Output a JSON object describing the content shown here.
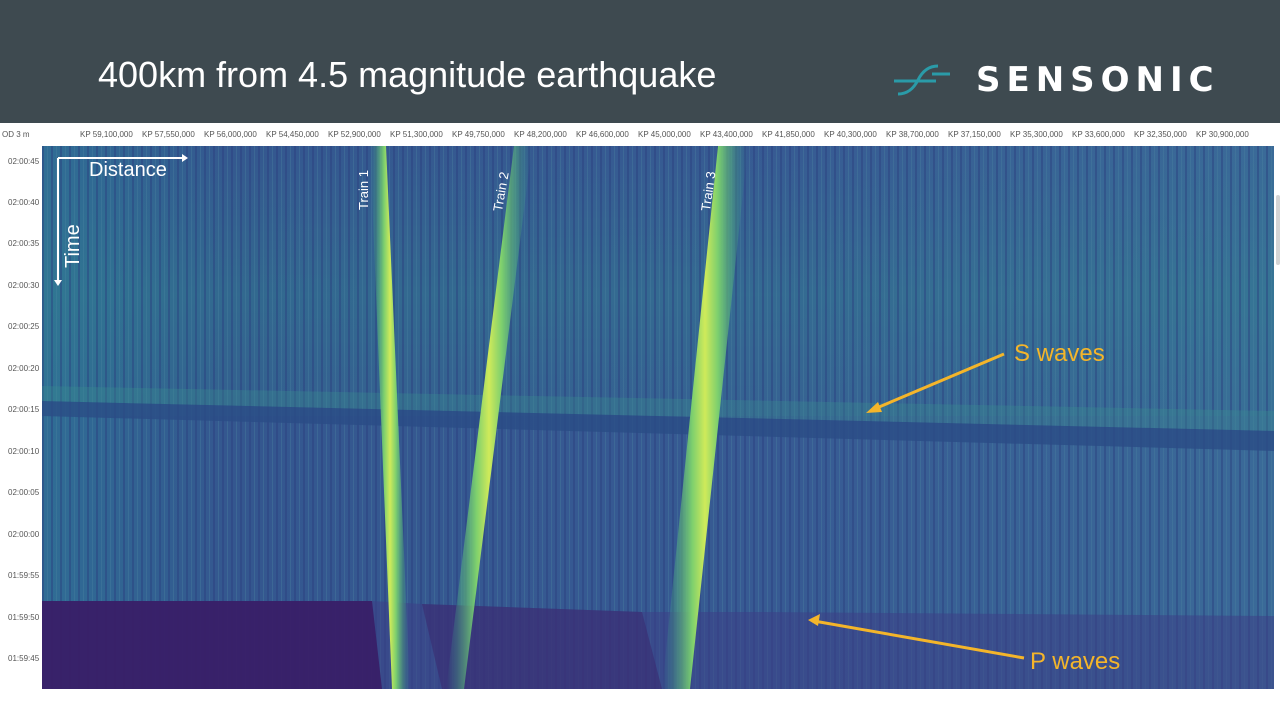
{
  "slide": {
    "title": "400km from 4.5 magnitude earthquake",
    "logo_text": "SENSONIC",
    "header_color": "#3e4a50",
    "logo_accent": "#2a9ba8"
  },
  "waterfall": {
    "x_ticks": [
      "OD 3 m",
      "KP 59,100,000",
      "KP 57,550,000",
      "KP 56,000,000",
      "KP 54,450,000",
      "KP 52,900,000",
      "KP 51,300,000",
      "KP 49,750,000",
      "KP 48,200,000",
      "KP 46,600,000",
      "KP 45,000,000",
      "KP 43,400,000",
      "KP 41,850,000",
      "KP 40,300,000",
      "KP 38,700,000",
      "KP 37,150,000",
      "KP 35,300,000",
      "KP 33,600,000",
      "KP 32,350,000",
      "KP 30,900,000"
    ],
    "y_ticks": [
      "02:00:45",
      "02:00:40",
      "02:00:35",
      "02:00:30",
      "02:00:25",
      "02:00:20",
      "02:00:15",
      "02:00:10",
      "02:00:05",
      "02:00:00",
      "01:59:55",
      "01:59:50",
      "01:59:45"
    ],
    "axis_labels": {
      "distance": "Distance",
      "time": "Time"
    },
    "trains": [
      "Train 1",
      "Train 2",
      "Train 3"
    ],
    "events": {
      "s_waves": "S waves",
      "p_waves": "P waves"
    },
    "colormap": {
      "low": "#3b1e6a",
      "mid": "#2e5a96",
      "high": "#c6e85a"
    },
    "annotation_color": "#f4b52a"
  }
}
